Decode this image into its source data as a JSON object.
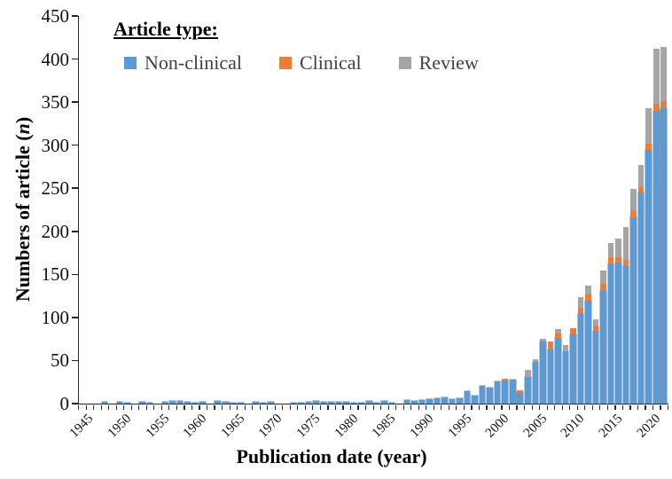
{
  "chart_data": {
    "type": "bar",
    "stacked": true,
    "title": "",
    "legend_title": "Article type:",
    "xlabel": "Publication date (year)",
    "ylabel_prefix": "Numbers of article (",
    "ylabel_italic": "n",
    "ylabel_suffix": ")",
    "ylim": [
      0,
      450
    ],
    "ytick_step": 50,
    "yticks": [
      0,
      50,
      100,
      150,
      200,
      250,
      300,
      350,
      400,
      450
    ],
    "xticks_labeled": [
      1945,
      1950,
      1955,
      1960,
      1965,
      1970,
      1975,
      1980,
      1985,
      1990,
      1995,
      2000,
      2005,
      2010,
      2015,
      2020
    ],
    "grid": false,
    "legend_position": "top-left-inside",
    "categories": [
      1945,
      1946,
      1947,
      1948,
      1949,
      1950,
      1951,
      1952,
      1953,
      1954,
      1955,
      1956,
      1957,
      1958,
      1959,
      1960,
      1961,
      1962,
      1963,
      1964,
      1965,
      1966,
      1967,
      1968,
      1969,
      1970,
      1971,
      1972,
      1973,
      1974,
      1975,
      1976,
      1977,
      1978,
      1979,
      1980,
      1981,
      1982,
      1983,
      1984,
      1985,
      1986,
      1987,
      1988,
      1989,
      1990,
      1991,
      1992,
      1993,
      1994,
      1995,
      1996,
      1997,
      1998,
      1999,
      2000,
      2001,
      2002,
      2003,
      2004,
      2005,
      2006,
      2007,
      2008,
      2009,
      2010,
      2011,
      2012,
      2013,
      2014,
      2015,
      2016,
      2017,
      2018,
      2019,
      2020,
      2021,
      2022
    ],
    "series": [
      {
        "name": "Non-clinical",
        "color": "#5B9BD5",
        "values": [
          0,
          0,
          0,
          2,
          0,
          2,
          1,
          0,
          2,
          1,
          0,
          2,
          3,
          3,
          2,
          1,
          2,
          0,
          3,
          2,
          1,
          1,
          0,
          2,
          1,
          2,
          0,
          0,
          1,
          1,
          2,
          3,
          2,
          2,
          2,
          2,
          1,
          1,
          3,
          1,
          3,
          1,
          0,
          4,
          3,
          4,
          5,
          6,
          7,
          5,
          6,
          14,
          9,
          21,
          19,
          26,
          27,
          28,
          12,
          31,
          48,
          72,
          63,
          76,
          61,
          80,
          104,
          119,
          84,
          131,
          163,
          164,
          160,
          216,
          245,
          295,
          340,
          343
        ]
      },
      {
        "name": "Clinical",
        "color": "#ED7D31",
        "values": [
          0,
          0,
          0,
          0,
          0,
          0,
          0,
          0,
          0,
          0,
          0,
          0,
          0,
          0,
          0,
          0,
          0,
          0,
          0,
          0,
          0,
          0,
          0,
          0,
          0,
          0,
          0,
          0,
          0,
          0,
          0,
          0,
          0,
          0,
          0,
          0,
          0,
          0,
          0,
          0,
          0,
          0,
          0,
          0,
          0,
          0,
          0,
          0,
          0,
          0,
          0,
          0,
          0,
          0,
          0,
          0,
          2,
          0,
          3,
          0,
          0,
          0,
          9,
          5,
          0,
          8,
          7,
          8,
          7,
          8,
          7,
          6,
          7,
          7,
          6,
          7,
          8,
          8
        ]
      },
      {
        "name": "Review",
        "color": "#A5A5A5",
        "values": [
          0,
          0,
          0,
          0,
          0,
          0,
          0,
          0,
          0,
          0,
          0,
          0,
          0,
          0,
          0,
          0,
          0,
          0,
          0,
          0,
          0,
          0,
          0,
          0,
          0,
          0,
          0,
          0,
          0,
          0,
          0,
          0,
          0,
          0,
          0,
          0,
          0,
          0,
          0,
          0,
          0,
          0,
          0,
          0,
          0,
          0,
          0,
          0,
          0,
          0,
          0,
          0,
          0,
          0,
          0,
          0,
          0,
          0,
          0,
          8,
          4,
          3,
          0,
          6,
          7,
          0,
          13,
          10,
          7,
          15,
          16,
          22,
          38,
          26,
          26,
          41,
          64,
          63
        ]
      }
    ],
    "axis_color": "#262626",
    "text_color": "#111111"
  },
  "layout_labels": {
    "plot_region": "bar chart of article counts per publication year, 1945-2022"
  }
}
